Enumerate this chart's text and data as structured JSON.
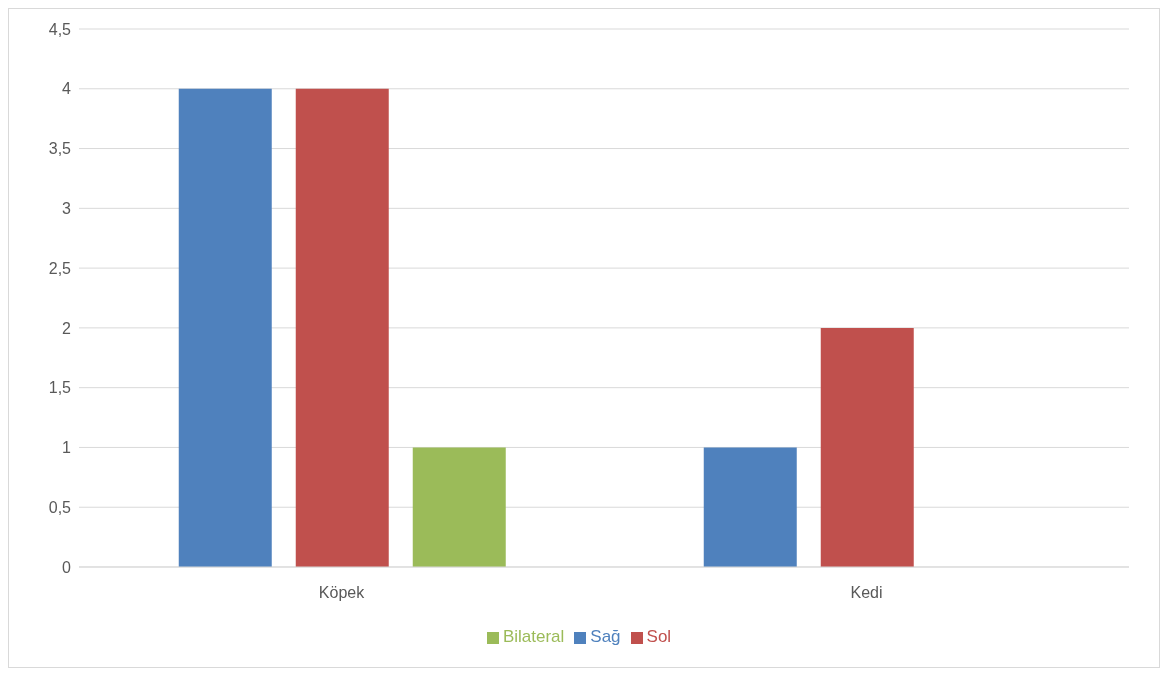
{
  "chart_data": {
    "type": "bar",
    "categories": [
      "Köpek",
      "Kedi"
    ],
    "series": [
      {
        "name": "Sağ",
        "color": "#4f81bd",
        "values": [
          4,
          1
        ]
      },
      {
        "name": "Sol",
        "color": "#c0504d",
        "values": [
          4,
          2
        ]
      },
      {
        "name": "Bilateral",
        "color": "#9bbb59",
        "values": [
          1,
          0
        ]
      }
    ],
    "ylim": [
      0,
      4.5
    ],
    "yticks": [
      0,
      {
        "value": 0.5,
        "label": "0,5"
      },
      1,
      {
        "value": 1.5,
        "label": "1,5"
      },
      2,
      {
        "value": 2.5,
        "label": "2,5"
      },
      3,
      {
        "value": 3.5,
        "label": "3,5"
      },
      4,
      {
        "value": 4.5,
        "label": "4,5"
      }
    ],
    "grid": "y",
    "legend": "bottom"
  }
}
